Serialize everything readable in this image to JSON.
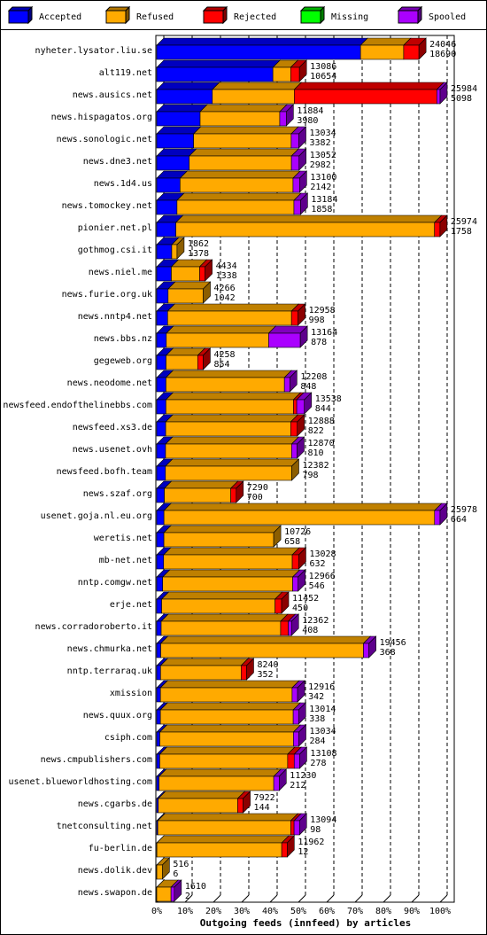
{
  "chart_data": {
    "type": "stacked-bar-3d",
    "x_label": "Outgoing feeds (innfeed) by articles",
    "categories": [
      "nyheter.lysator.liu.se",
      "alt119.net",
      "news.ausics.net",
      "news.hispagatos.org",
      "news.sonologic.net",
      "news.dne3.net",
      "news.1d4.us",
      "news.tomockey.net",
      "pionier.net.pl",
      "gothmog.csi.it",
      "news.niel.me",
      "news.furie.org.uk",
      "news.nntp4.net",
      "news.bbs.nz",
      "gegeweb.org",
      "news.neodome.net",
      "newsfeed.endofthelinebbs.com",
      "newsfeed.xs3.de",
      "news.usenet.ovh",
      "newsfeed.bofh.team",
      "news.szaf.org",
      "usenet.goja.nl.eu.org",
      "weretis.net",
      "mb-net.net",
      "nntp.comgw.net",
      "erje.net",
      "news.corradoroberto.it",
      "news.chmurka.net",
      "nntp.terraraq.uk",
      "xmission",
      "news.quux.org",
      "csiph.com",
      "news.cmpublishers.com",
      "usenet.blueworldhosting.com",
      "news.cgarbs.de",
      "tnetconsulting.net",
      "fu-berlin.de",
      "news.dolik.dev",
      "news.swapon.de"
    ],
    "totals": [
      24046,
      13086,
      25984,
      11884,
      13034,
      13052,
      13100,
      13184,
      25974,
      1862,
      4434,
      4266,
      12958,
      13164,
      4258,
      12208,
      13538,
      12888,
      12870,
      12382,
      7290,
      25978,
      10726,
      13028,
      12966,
      11452,
      12362,
      19456,
      8240,
      12916,
      13014,
      13034,
      13108,
      11230,
      7922,
      13094,
      11962,
      516,
      1610
    ],
    "series": [
      {
        "name": "Accepted",
        "color": "#0000ff",
        "values": [
          18690,
          10654,
          5098,
          3980,
          3382,
          2982,
          2142,
          1858,
          1758,
          1378,
          1338,
          1042,
          998,
          878,
          854,
          848,
          844,
          822,
          810,
          798,
          700,
          664,
          658,
          632,
          546,
          450,
          408,
          368,
          352,
          342,
          338,
          284,
          278,
          212,
          144,
          98,
          12,
          6,
          2
        ]
      },
      {
        "name": "Refused",
        "color": "#ffaa00",
        "values": [
          3956,
          1632,
          7516,
          7304,
          8952,
          9370,
          10358,
          10726,
          23716,
          484,
          2596,
          3224,
          11360,
          9386,
          2904,
          10860,
          11694,
          11466,
          11560,
          11584,
          6090,
          24814,
          10068,
          11796,
          11920,
          10402,
          10954,
          18588,
          7388,
          12074,
          12176,
          12250,
          11730,
          10518,
          7278,
          12196,
          11450,
          510,
          1308
        ]
      },
      {
        "name": "Rejected",
        "color": "#ff0000",
        "values": [
          1400,
          800,
          13070,
          0,
          0,
          0,
          0,
          0,
          500,
          0,
          500,
          0,
          600,
          0,
          500,
          0,
          300,
          600,
          0,
          0,
          500,
          0,
          0,
          600,
          0,
          600,
          700,
          0,
          500,
          0,
          0,
          0,
          600,
          0,
          500,
          300,
          500,
          0,
          0
        ]
      },
      {
        "name": "Missing",
        "color": "#00ff00",
        "values": [
          0,
          0,
          0,
          0,
          0,
          0,
          0,
          0,
          0,
          0,
          0,
          0,
          0,
          0,
          0,
          0,
          0,
          0,
          0,
          0,
          0,
          0,
          0,
          0,
          0,
          0,
          0,
          0,
          0,
          0,
          0,
          0,
          0,
          0,
          0,
          0,
          0,
          0,
          0
        ]
      },
      {
        "name": "Spooled",
        "color": "#aa00ff",
        "values": [
          0,
          0,
          300,
          600,
          700,
          700,
          600,
          600,
          0,
          0,
          0,
          0,
          0,
          2900,
          0,
          500,
          700,
          0,
          500,
          0,
          0,
          500,
          0,
          0,
          500,
          0,
          300,
          500,
          0,
          500,
          500,
          500,
          500,
          500,
          0,
          500,
          0,
          0,
          300
        ]
      }
    ],
    "xlim": [
      0,
      25984
    ],
    "xticks": [
      {
        "value": 0,
        "label": "0%"
      },
      {
        "value": 2598.4,
        "label": "10%"
      },
      {
        "value": 5196.8,
        "label": "20%"
      },
      {
        "value": 7795.2,
        "label": "30%"
      },
      {
        "value": 10393.6,
        "label": "40%"
      },
      {
        "value": 12992,
        "label": "50%"
      },
      {
        "value": 15590.4,
        "label": "60%"
      },
      {
        "value": 18188.8,
        "label": "70%"
      },
      {
        "value": 20787.2,
        "label": "80%"
      },
      {
        "value": 23385.6,
        "label": "90%"
      },
      {
        "value": 25984,
        "label": "100%"
      }
    ],
    "grid": true
  }
}
